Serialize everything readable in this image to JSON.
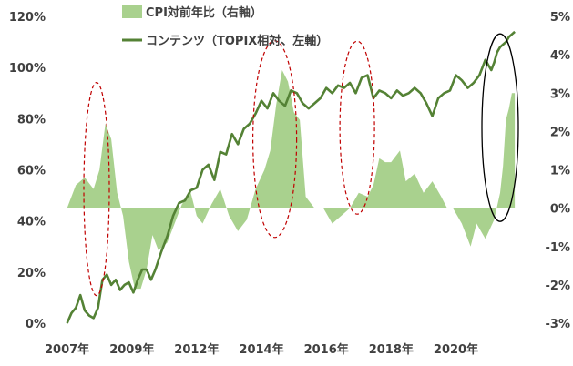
{
  "chart_data": {
    "type": "line+area",
    "legend": {
      "placement": "top-center",
      "items": [
        {
          "label": "CPI対前年比（右軸）",
          "kind": "area",
          "color": "#a9d18e"
        },
        {
          "label": "コンテンツ（TOPIX相対、左軸）",
          "kind": "line",
          "color": "#548235"
        }
      ]
    },
    "x_axis": {
      "range": [
        2006.95,
        2022.35
      ],
      "tick_labels": [
        "2007年",
        "2009年",
        "2012年",
        "2014年",
        "2016年",
        "2018年",
        "2020年"
      ],
      "tick_positions": [
        2007.0,
        2009.2,
        2011.4,
        2013.6,
        2015.8,
        2018.0,
        2020.2
      ]
    },
    "y_left": {
      "range": [
        0,
        120
      ],
      "ticks": [
        0,
        20,
        40,
        60,
        80,
        100,
        120
      ],
      "tick_labels": [
        "0%",
        "20%",
        "40%",
        "60%",
        "80%",
        "100%",
        "120%"
      ]
    },
    "y_right": {
      "range": [
        -3,
        5
      ],
      "ticks": [
        -3,
        -2,
        -1,
        0,
        1,
        2,
        3,
        4,
        5
      ],
      "tick_labels": [
        "-3%",
        "-2%",
        "-1%",
        "0%",
        "1%",
        "2%",
        "3%",
        "4%",
        "5%"
      ]
    },
    "series": [
      {
        "name": "CPI対前年比（右軸）",
        "axis": "right",
        "type": "area",
        "x": [
          2007.0,
          2007.3,
          2007.6,
          2007.9,
          2008.1,
          2008.3,
          2008.5,
          2008.7,
          2008.9,
          2009.1,
          2009.3,
          2009.5,
          2009.7,
          2009.9,
          2010.1,
          2010.4,
          2010.7,
          2010.9,
          2011.2,
          2011.4,
          2011.6,
          2011.9,
          2012.2,
          2012.5,
          2012.8,
          2013.1,
          2013.4,
          2013.7,
          2013.9,
          2014.1,
          2014.3,
          2014.5,
          2014.7,
          2014.9,
          2015.1,
          2015.2,
          2015.4,
          2015.7,
          2016.0,
          2016.3,
          2016.6,
          2016.9,
          2017.2,
          2017.4,
          2017.6,
          2017.8,
          2018.0,
          2018.3,
          2018.5,
          2018.8,
          2019.1,
          2019.4,
          2019.7,
          2019.9,
          2020.1,
          2020.4,
          2020.7,
          2020.9,
          2021.2,
          2021.5,
          2021.7,
          2021.8,
          2021.9,
          2022.0,
          2022.1,
          2022.2
        ],
        "y": [
          0.0,
          0.6,
          0.8,
          0.5,
          1.0,
          2.2,
          1.8,
          0.4,
          -0.2,
          -1.4,
          -2.1,
          -2.1,
          -1.6,
          -0.7,
          -1.1,
          -0.9,
          -0.3,
          0.1,
          0.4,
          -0.2,
          -0.4,
          0.1,
          0.5,
          -0.2,
          -0.6,
          -0.3,
          0.5,
          1.0,
          1.5,
          2.7,
          3.6,
          3.3,
          2.5,
          2.3,
          0.3,
          0.2,
          0.0,
          0.0,
          -0.4,
          -0.2,
          0.0,
          0.4,
          0.3,
          0.6,
          1.3,
          1.2,
          1.2,
          1.5,
          0.7,
          0.9,
          0.4,
          0.7,
          0.3,
          0.0,
          0.0,
          -0.4,
          -1.0,
          -0.4,
          -0.8,
          -0.3,
          0.4,
          1.1,
          2.3,
          2.6,
          3.0,
          3.0
        ]
      },
      {
        "name": "コンテンツ（TOPIX相対、左軸）",
        "axis": "left",
        "type": "line",
        "x": [
          2007.0,
          2007.15,
          2007.3,
          2007.45,
          2007.6,
          2007.75,
          2007.9,
          2008.05,
          2008.2,
          2008.35,
          2008.5,
          2008.65,
          2008.8,
          2008.95,
          2009.1,
          2009.25,
          2009.4,
          2009.55,
          2009.7,
          2009.85,
          2010.0,
          2010.2,
          2010.4,
          2010.6,
          2010.8,
          2011.0,
          2011.2,
          2011.4,
          2011.6,
          2011.8,
          2012.0,
          2012.2,
          2012.4,
          2012.6,
          2012.8,
          2013.0,
          2013.2,
          2013.4,
          2013.6,
          2013.8,
          2014.0,
          2014.2,
          2014.4,
          2014.6,
          2014.8,
          2015.0,
          2015.2,
          2015.4,
          2015.6,
          2015.8,
          2016.0,
          2016.2,
          2016.4,
          2016.6,
          2016.8,
          2017.0,
          2017.2,
          2017.4,
          2017.6,
          2017.8,
          2018.0,
          2018.2,
          2018.4,
          2018.6,
          2018.8,
          2019.0,
          2019.2,
          2019.4,
          2019.6,
          2019.8,
          2020.0,
          2020.2,
          2020.4,
          2020.6,
          2020.8,
          2021.0,
          2021.2,
          2021.4,
          2021.5,
          2021.6,
          2021.7,
          2021.8,
          2021.9,
          2022.0,
          2022.1,
          2022.2
        ],
        "y": [
          0,
          4,
          6,
          11,
          5,
          3,
          2,
          6,
          17,
          19,
          15,
          17,
          13,
          15,
          16,
          12,
          17,
          21,
          21,
          17,
          21,
          28,
          34,
          42,
          47,
          48,
          52,
          53,
          60,
          62,
          56,
          67,
          66,
          74,
          70,
          76,
          78,
          82,
          87,
          84,
          90,
          87,
          85,
          91,
          90,
          86,
          84,
          86,
          88,
          92,
          90,
          93,
          92,
          94,
          90,
          96,
          97,
          88,
          91,
          90,
          88,
          91,
          89,
          90,
          92,
          90,
          86,
          81,
          88,
          90,
          91,
          97,
          95,
          92,
          94,
          97,
          103,
          99,
          102,
          106,
          108,
          109,
          110,
          112,
          113,
          114
        ]
      }
    ],
    "annotations": [
      {
        "shape": "ellipse",
        "style": "dashed",
        "color": "#c00000",
        "x_center": 2008.0,
        "y_center": 0.5
      },
      {
        "shape": "ellipse",
        "style": "dashed",
        "color": "#c00000",
        "x_center": 2014.05,
        "y_center": 1.8
      },
      {
        "shape": "ellipse",
        "style": "dashed",
        "color": "#c00000",
        "x_center": 2016.85,
        "y_center": 2.1
      },
      {
        "shape": "ellipse",
        "style": "solid",
        "color": "#000000",
        "x_center": 2021.7,
        "y_center": 2.1
      }
    ],
    "grid": false
  }
}
